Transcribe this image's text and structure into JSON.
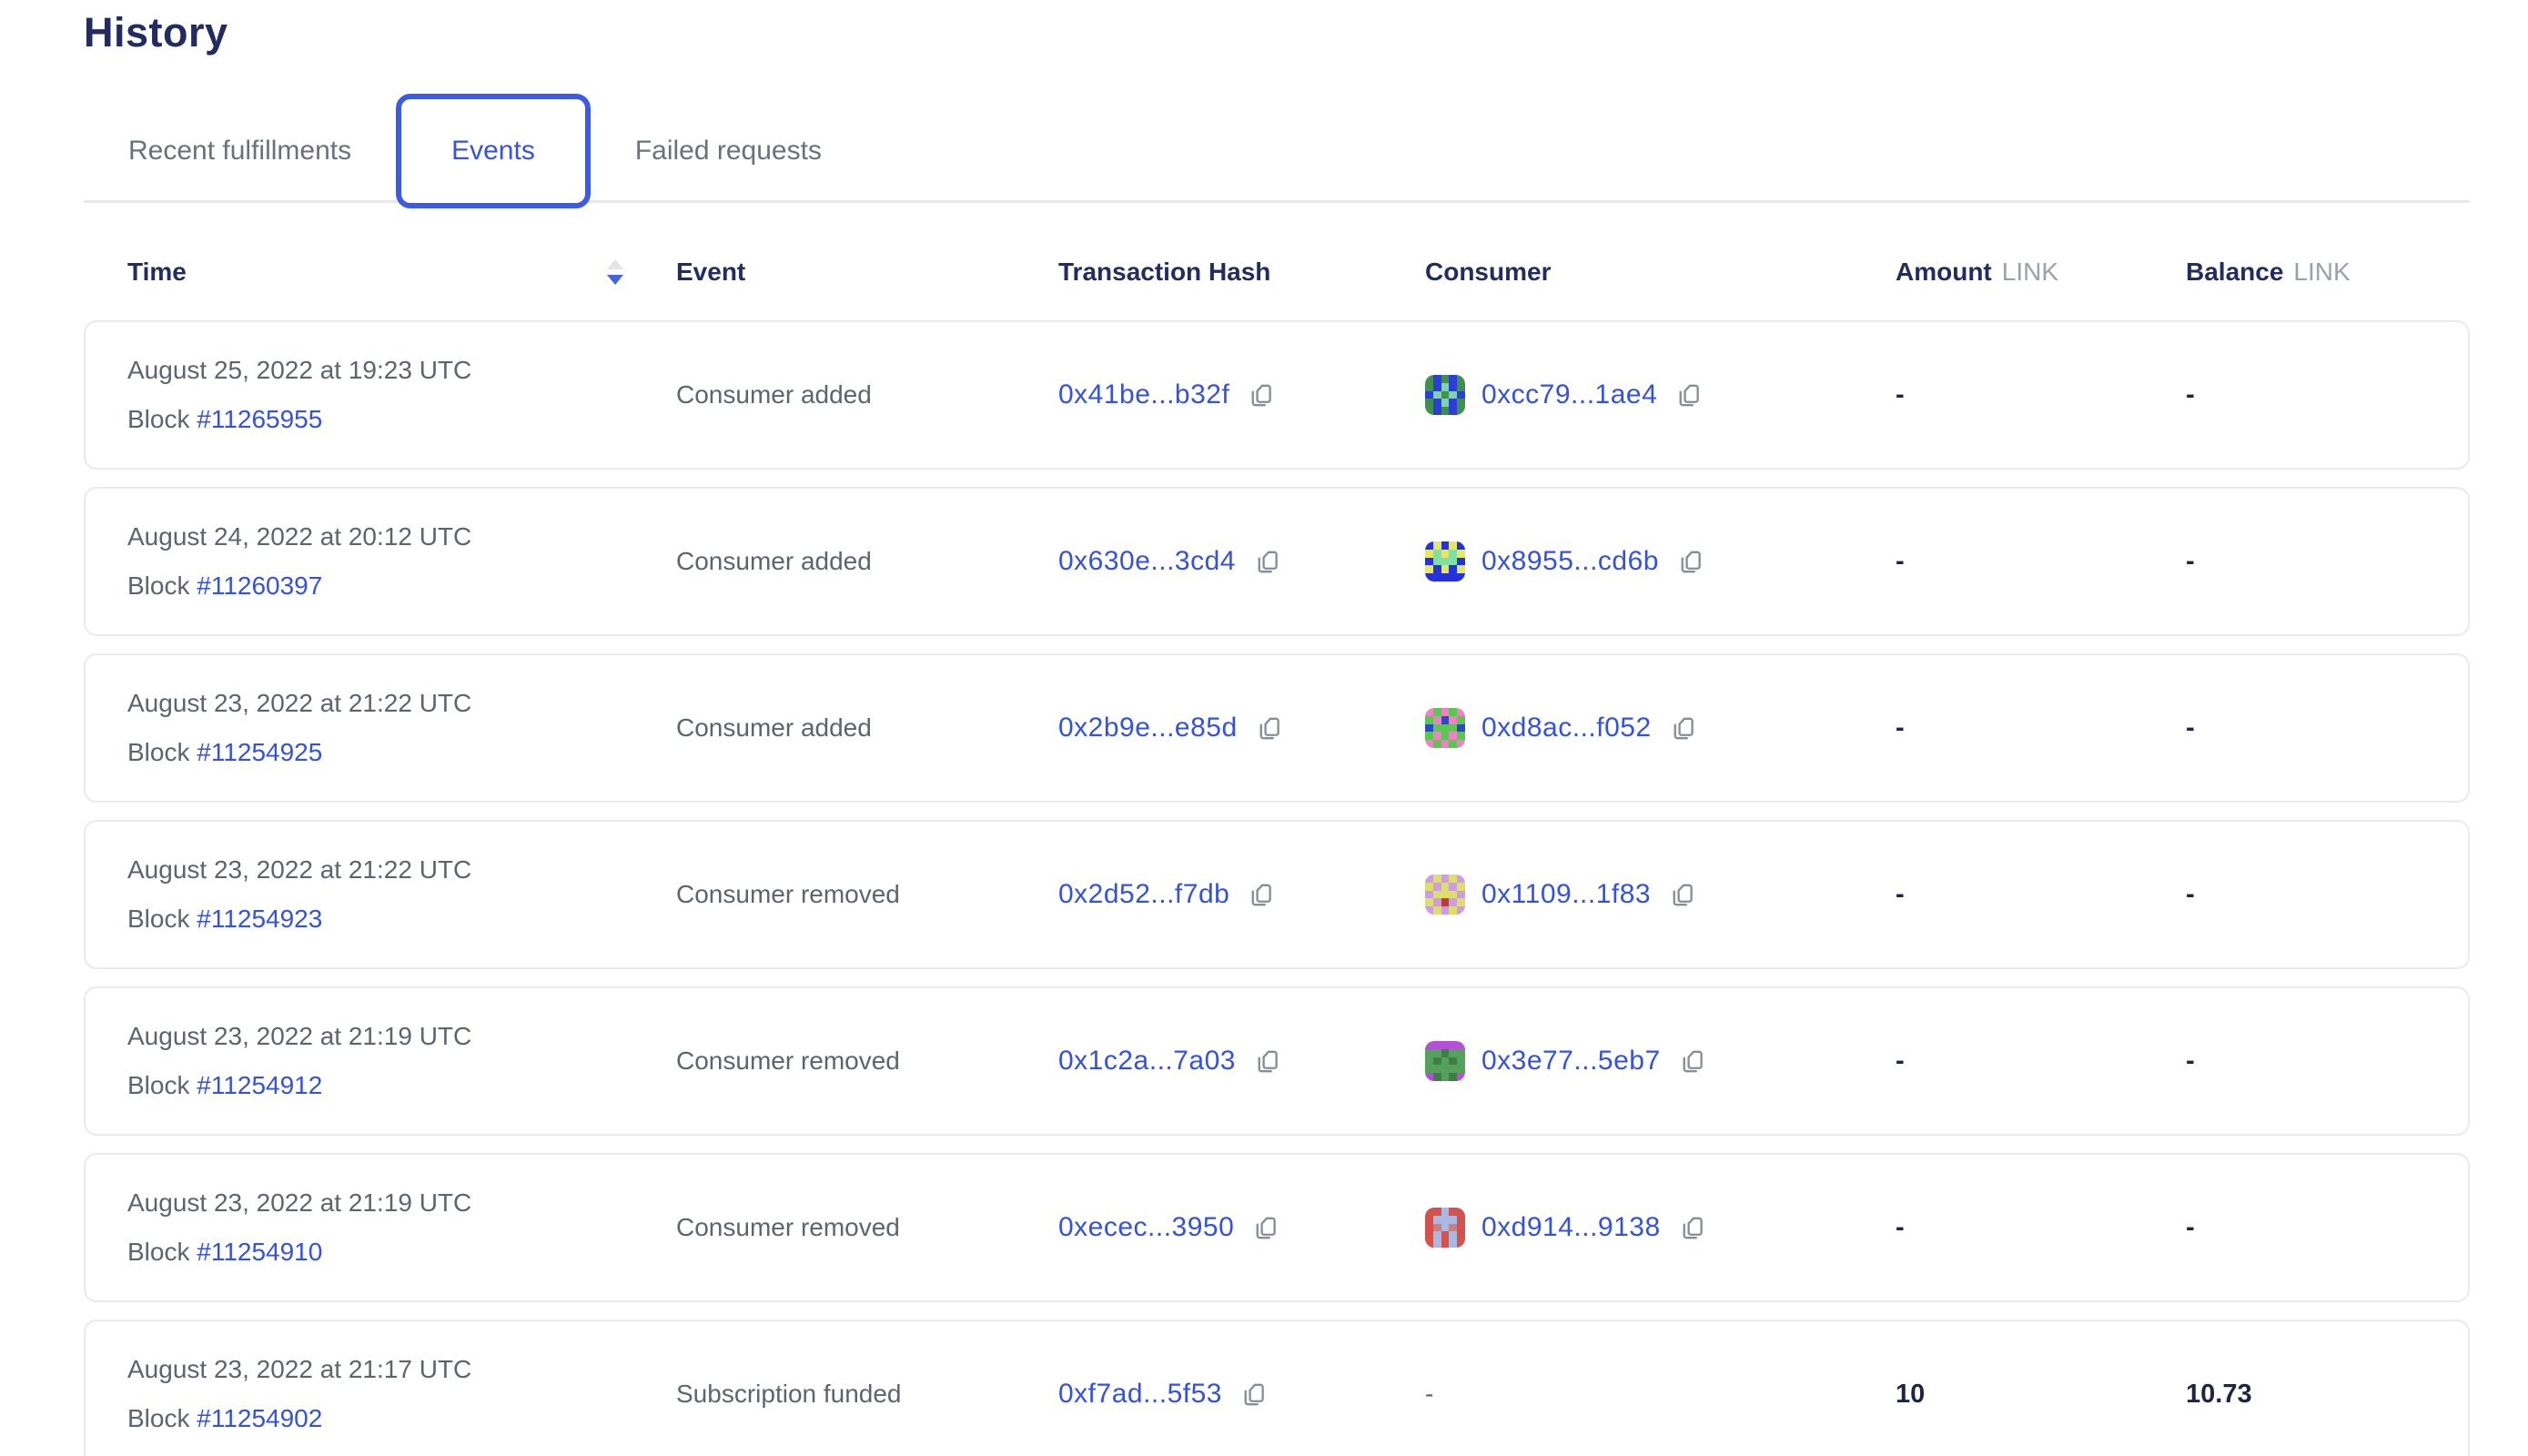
{
  "page": {
    "title": "History"
  },
  "tabs": [
    {
      "label": "Recent fulfillments",
      "active": false
    },
    {
      "label": "Events",
      "active": true
    },
    {
      "label": "Failed requests",
      "active": false
    }
  ],
  "colors": {
    "accent_blue": "#3c5be2",
    "link_blue": "#3552da",
    "heading_navy": "#222c62",
    "body_gray": "#5e646f",
    "unit_gray": "#9aa0ac",
    "card_border": "#e9eaec",
    "value_navy": "#1c2543"
  },
  "table": {
    "headers": {
      "time": "Time",
      "event": "Event",
      "tx_hash": "Transaction Hash",
      "consumer": "Consumer",
      "amount": "Amount",
      "balance": "Balance",
      "unit": "LINK"
    },
    "sort": {
      "column": "time",
      "direction": "descending",
      "icon": "sort-arrows-icon"
    },
    "rows": [
      {
        "date": "August 25, 2022 at 19:23 UTC",
        "block_label": "Block",
        "block_number": "#11265955",
        "event": "Consumer added",
        "tx_hash": "0x41be...b32f",
        "consumer": {
          "address": "0xcc79...1ae4",
          "avatar": {
            "palette": [
              "#3f8f4f",
              "#2c3ed8",
              "#7fd4b0"
            ],
            "pattern": [
              0,
              1,
              0,
              1,
              0,
              0,
              1,
              2,
              1,
              0,
              1,
              2,
              0,
              2,
              1,
              0,
              1,
              2,
              1,
              0,
              0,
              1,
              0,
              1,
              0
            ]
          }
        },
        "amount": "-",
        "balance": "-"
      },
      {
        "date": "August 24, 2022 at 20:12 UTC",
        "block_label": "Block",
        "block_number": "#11260397",
        "event": "Consumer added",
        "tx_hash": "0x630e...3cd4",
        "consumer": {
          "address": "0x8955...cd6b",
          "avatar": {
            "palette": [
              "#2531dd",
              "#e6e766",
              "#7fdfa7"
            ],
            "pattern": [
              0,
              1,
              0,
              1,
              0,
              1,
              2,
              1,
              2,
              1,
              0,
              2,
              2,
              2,
              0,
              1,
              0,
              1,
              0,
              1,
              0,
              0,
              0,
              0,
              0
            ]
          }
        },
        "amount": "-",
        "balance": "-"
      },
      {
        "date": "August 23, 2022 at 21:22 UTC",
        "block_label": "Block",
        "block_number": "#11254925",
        "event": "Consumer added",
        "tx_hash": "0x2b9e...e85d",
        "consumer": {
          "address": "0xd8ac...f052",
          "avatar": {
            "palette": [
              "#5ac751",
              "#ee82c4",
              "#2b49c8"
            ],
            "pattern": [
              1,
              0,
              1,
              0,
              1,
              0,
              1,
              2,
              1,
              0,
              2,
              0,
              0,
              0,
              2,
              0,
              1,
              0,
              1,
              0,
              1,
              0,
              1,
              0,
              1
            ]
          }
        },
        "amount": "-",
        "balance": "-"
      },
      {
        "date": "August 23, 2022 at 21:22 UTC",
        "block_label": "Block",
        "block_number": "#11254923",
        "event": "Consumer removed",
        "tx_hash": "0x2d52...f7db",
        "consumer": {
          "address": "0x1109...1f83",
          "avatar": {
            "palette": [
              "#cf9cdf",
              "#dcdf6b",
              "#bf3a31"
            ],
            "pattern": [
              0,
              1,
              0,
              1,
              0,
              1,
              0,
              1,
              0,
              1,
              0,
              1,
              1,
              1,
              0,
              1,
              0,
              2,
              0,
              1,
              0,
              1,
              0,
              1,
              0
            ]
          }
        },
        "amount": "-",
        "balance": "-"
      },
      {
        "date": "August 23, 2022 at 21:19 UTC",
        "block_label": "Block",
        "block_number": "#11254912",
        "event": "Consumer removed",
        "tx_hash": "0x1c2a...7a03",
        "consumer": {
          "address": "0x3e77...5eb7",
          "avatar": {
            "palette": [
              "#55a15b",
              "#b44fd8",
              "#3f7d46"
            ],
            "pattern": [
              1,
              1,
              1,
              1,
              1,
              0,
              0,
              2,
              0,
              0,
              0,
              2,
              0,
              2,
              0,
              0,
              0,
              0,
              0,
              0,
              1,
              2,
              0,
              2,
              1
            ]
          }
        },
        "amount": "-",
        "balance": "-"
      },
      {
        "date": "August 23, 2022 at 21:19 UTC",
        "block_label": "Block",
        "block_number": "#11254910",
        "event": "Consumer removed",
        "tx_hash": "0xecec...3950",
        "consumer": {
          "address": "0xd914...9138",
          "avatar": {
            "palette": [
              "#d4524e",
              "#a9b9e2",
              "#c87f84"
            ],
            "pattern": [
              0,
              0,
              1,
              0,
              0,
              0,
              1,
              1,
              1,
              0,
              0,
              2,
              1,
              2,
              0,
              0,
              1,
              0,
              1,
              0,
              0,
              1,
              0,
              1,
              0
            ]
          }
        },
        "amount": "-",
        "balance": "-"
      },
      {
        "date": "August 23, 2022 at 21:17 UTC",
        "block_label": "Block",
        "block_number": "#11254902",
        "event": "Subscription funded",
        "tx_hash": "0xf7ad...5f53",
        "consumer": {
          "placeholder": "-"
        },
        "amount": "10",
        "balance": "10.73"
      }
    ]
  },
  "icons": {
    "copy": "copy-icon",
    "sort": "sort-arrows-icon"
  }
}
